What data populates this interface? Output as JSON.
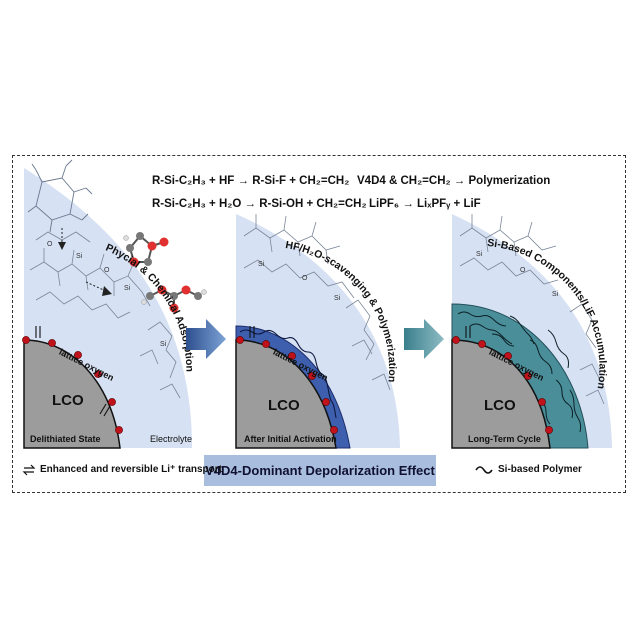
{
  "equations": {
    "eq1": "R-Si-C₂H₃ + HF → R-Si-F + CH₂=CH₂",
    "eq2": "R-Si-C₂H₃ + H₂O → R-Si-OH + CH₂=CH₂",
    "eq3": "V4D4 & CH₂=CH₂ → Polymerization",
    "eq4": "LiPF₆ → LiₓPFᵧ + LiF"
  },
  "panel1": {
    "arc_label": "Phycial & Chemical Adsorption",
    "lattice_label": "lattice oxygen",
    "core_label": "LCO",
    "state_label": "Delithiated State",
    "electrolyte_label": "Electrolyte"
  },
  "panel2": {
    "arc_label": "HF/H₂O-scavenging & Polymerization",
    "lattice_label": "lattice oxygen",
    "core_label": "LCO",
    "state_label": "After Initial Activation"
  },
  "panel3": {
    "arc_label": "Si-Based Components/LiF Accumulation",
    "lattice_label": "lattice oxygen",
    "core_label": "LCO",
    "state_label": "Long-Term Cycle"
  },
  "banner": "V4D4-Dominant Depolarization Effect",
  "legend_left": "Enhanced and reversible Li⁺ transport",
  "legend_right": "Si-based Polymer",
  "colors": {
    "electrolyte": "#d6e1f3",
    "cathode": "#9c9c9c",
    "cei_dark": "#4a8e9a",
    "cei_blue": "#3d5fae",
    "arrow": "#3a5d9c",
    "oxygen": "#c0121a"
  }
}
